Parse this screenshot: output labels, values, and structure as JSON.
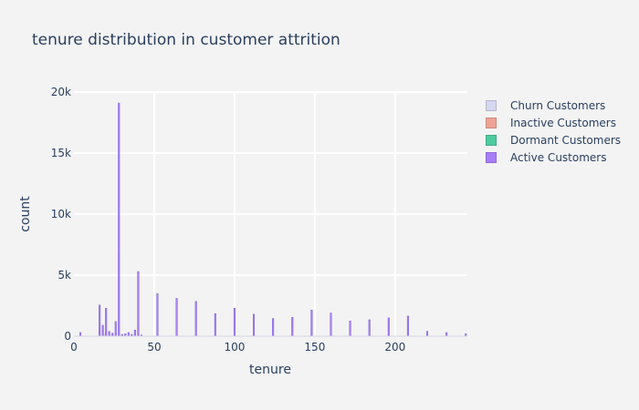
{
  "chart_data": {
    "type": "bar",
    "title": "tenure distribution in customer attrition",
    "xlabel": "tenure",
    "ylabel": "count",
    "xlim": [
      0,
      245
    ],
    "ylim": [
      0,
      20000
    ],
    "x_ticks": [
      0,
      50,
      100,
      150,
      200
    ],
    "y_ticks": [
      0,
      5000,
      10000,
      15000,
      20000
    ],
    "x_tick_labels": [
      "0",
      "50",
      "100",
      "150",
      "200"
    ],
    "y_tick_labels": [
      "0",
      "5k",
      "10k",
      "15k",
      "20k"
    ],
    "grid": true,
    "legend_position": "top-right",
    "barmode": "overlay",
    "series": [
      {
        "name": "Churn Customers",
        "color": "#d5d7f0",
        "x": [
          16,
          19,
          28,
          40
        ],
        "values": [
          300,
          250,
          900,
          150
        ]
      },
      {
        "name": "Inactive Customers",
        "color": "#eea396",
        "x": [
          16,
          18,
          20,
          22,
          24,
          26,
          28,
          38,
          40,
          52
        ],
        "values": [
          700,
          500,
          350,
          250,
          200,
          300,
          6900,
          500,
          900,
          300
        ]
      },
      {
        "name": "Dormant Customers",
        "color": "#4fcba0",
        "x": [
          16,
          20,
          28
        ],
        "values": [
          150,
          150,
          400
        ]
      },
      {
        "name": "Active Customers",
        "color": "#a97cf7",
        "x": [
          4,
          16,
          18,
          20,
          22,
          24,
          26,
          28,
          30,
          32,
          34,
          36,
          38,
          40,
          42,
          52,
          64,
          76,
          88,
          100,
          112,
          124,
          136,
          148,
          160,
          172,
          184,
          196,
          208,
          220,
          232,
          244
        ],
        "values": [
          300,
          2550,
          900,
          2300,
          400,
          250,
          1200,
          19100,
          150,
          200,
          300,
          150,
          500,
          5300,
          100,
          3500,
          3100,
          2850,
          1850,
          2300,
          1800,
          1450,
          1550,
          2150,
          1900,
          1250,
          1350,
          1500,
          1650,
          400,
          300,
          200
        ]
      }
    ]
  }
}
